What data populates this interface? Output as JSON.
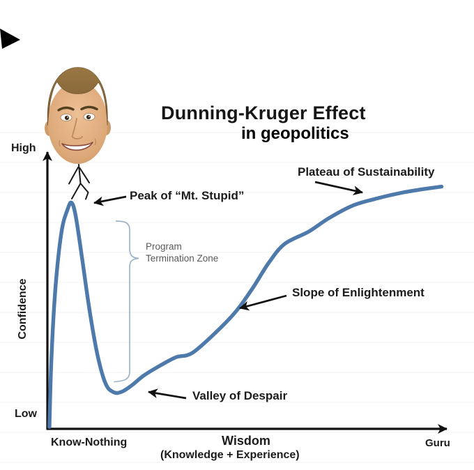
{
  "title": {
    "line1": "Dunning-Kruger Effect",
    "line2": "in geopolitics"
  },
  "y_axis": {
    "label": "Confidence",
    "top_tick": "High",
    "bottom_tick": "Low"
  },
  "x_axis": {
    "left_tick": "Know-Nothing",
    "label_main": "Wisdom",
    "label_sub": "(Knowledge + Experience)",
    "right_tick": "Guru"
  },
  "annotations": {
    "peak": "Peak of “Mt. Stupid”",
    "plateau": "Plateau of Sustainability",
    "slope": "Slope of Enlightenment",
    "valley": "Valley of Despair",
    "bracket_zone": "Program Termination Zone"
  },
  "decorations": {
    "head_icon": "young-man-photo-head",
    "figure_icon": "stick-figure",
    "corner_icon": "black-corner-wedge"
  },
  "colors": {
    "curve": "#4d79ab",
    "bracket": "#9db4c8",
    "ink": "#141414",
    "muted": "#595959",
    "grid": "#f3f3f3"
  },
  "chart_data": {
    "type": "line",
    "title": "Dunning-Kruger Effect in geopolitics",
    "xlabel": "Wisdom (Knowledge + Experience)",
    "ylabel": "Confidence",
    "x_tick_labels": [
      "Know-Nothing",
      "Guru"
    ],
    "y_tick_labels": [
      "Low",
      "High"
    ],
    "xlim": [
      0,
      100
    ],
    "ylim": [
      0,
      100
    ],
    "grid": "faint-horizontal",
    "legend": false,
    "series": [
      {
        "name": "Confidence vs Wisdom",
        "x": [
          0.5,
          1,
          2,
          3.5,
          5,
          6,
          7,
          8.5,
          10.5,
          12.5,
          14.5,
          16.5,
          18.5,
          21,
          24,
          28,
          32,
          36,
          42,
          47,
          51,
          55,
          59,
          65,
          70,
          76,
          82,
          88,
          93,
          98
        ],
        "values": [
          0.7,
          25,
          50,
          70,
          78,
          80.5,
          76,
          62,
          42,
          26,
          16,
          13,
          13.2,
          15.5,
          19,
          22.5,
          25.5,
          27,
          34.5,
          42,
          50,
          59,
          65.8,
          70.2,
          75,
          79.5,
          82,
          84,
          85.2,
          86.2
        ]
      }
    ],
    "points_of_interest": [
      {
        "label": "Peak of “Mt. Stupid”",
        "x": 6,
        "y": 80.5
      },
      {
        "label": "Valley of Despair",
        "x": 17,
        "y": 13
      },
      {
        "label": "Slope of Enlightenment",
        "x": 47,
        "y": 42
      },
      {
        "label": "Plateau of Sustainability",
        "x": 84,
        "y": 83
      },
      {
        "label": "Program Termination Zone",
        "x": 20.5,
        "y_range": [
          17,
          74
        ]
      }
    ]
  }
}
